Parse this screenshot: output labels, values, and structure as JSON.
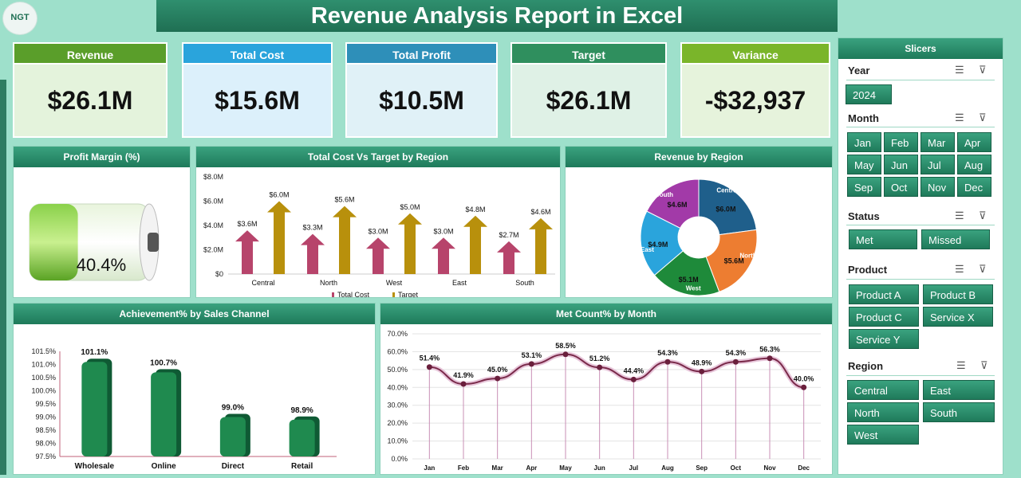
{
  "header": {
    "title": "Revenue Analysis Report in Excel",
    "logo_text": "NGT"
  },
  "kpis": [
    {
      "label": "Revenue",
      "value": "$26.1M",
      "head": "#5a9e2a",
      "body": "#e4f3dc"
    },
    {
      "label": "Total Cost",
      "value": "$15.6M",
      "head": "#2aa4dc",
      "body": "#dcf0fb"
    },
    {
      "label": "Total Profit",
      "value": "$10.5M",
      "head": "#2e8fb9",
      "body": "#e0f1f7"
    },
    {
      "label": "Target",
      "value": "$26.1M",
      "head": "#2f8f5e",
      "body": "#dff1e6"
    },
    {
      "label": "Variance",
      "value": "-$32,937",
      "head": "#7ab52a",
      "body": "#e6f3dc"
    }
  ],
  "profit_margin": {
    "title": "Profit Margin (%)",
    "value": "40.4%",
    "level": 0.404
  },
  "cost_target": {
    "title": "Total Cost Vs Target by Region",
    "chart_data": {
      "type": "bar",
      "categories": [
        "Central",
        "North",
        "West",
        "East",
        "South"
      ],
      "series": [
        {
          "name": "Total Cost",
          "values": [
            3.6,
            3.3,
            3.0,
            3.0,
            2.7
          ],
          "labels": [
            "$3.6M",
            "$3.3M",
            "$3.0M",
            "$3.0M",
            "$2.7M"
          ],
          "color": "#b7446b"
        },
        {
          "name": "Target",
          "values": [
            6.0,
            5.6,
            5.0,
            4.8,
            4.6
          ],
          "labels": [
            "$6.0M",
            "$5.6M",
            "$5.0M",
            "$4.8M",
            "$4.6M"
          ],
          "color": "#b8900c"
        }
      ],
      "yticks": [
        "$0",
        "$2.0M",
        "$4.0M",
        "$6.0M",
        "$8.0M"
      ],
      "ylim": [
        0,
        8
      ]
    }
  },
  "revenue_region": {
    "title": "Revenue by Region",
    "chart_data": {
      "type": "pie",
      "slices": [
        {
          "name": "Central",
          "value": 6.0,
          "label": "$6.0M",
          "color": "#1f5f8b"
        },
        {
          "name": "North",
          "value": 5.6,
          "label": "$5.6M",
          "color": "#ed7d31"
        },
        {
          "name": "West",
          "value": 5.1,
          "label": "$5.1M",
          "color": "#1e8a3a"
        },
        {
          "name": "East",
          "value": 4.9,
          "label": "$4.9M",
          "color": "#2aa4dc"
        },
        {
          "name": "South",
          "value": 4.6,
          "label": "$4.6M",
          "color": "#a23aa8"
        }
      ]
    }
  },
  "achievement": {
    "title": "Achievement% by Sales Channel",
    "chart_data": {
      "type": "bar",
      "categories": [
        "Wholesale",
        "Online",
        "Direct",
        "Retail"
      ],
      "values": [
        101.1,
        100.7,
        99.0,
        98.9
      ],
      "labels": [
        "101.1%",
        "100.7%",
        "99.0%",
        "98.9%"
      ],
      "yticks": [
        "97.5%",
        "98.0%",
        "98.5%",
        "99.0%",
        "99.5%",
        "100.0%",
        "100.5%",
        "101.0%",
        "101.5%"
      ],
      "ylim": [
        97.5,
        101.5
      ]
    }
  },
  "met_count": {
    "title": "Met Count% by Month",
    "chart_data": {
      "type": "line",
      "categories": [
        "Jan",
        "Feb",
        "Mar",
        "Apr",
        "May",
        "Jun",
        "Jul",
        "Aug",
        "Sep",
        "Oct",
        "Nov",
        "Dec"
      ],
      "values": [
        51.4,
        41.9,
        45.0,
        53.1,
        58.5,
        51.2,
        44.4,
        54.3,
        48.9,
        54.3,
        56.3,
        40.0
      ],
      "labels": [
        "51.4%",
        "41.9%",
        "45.0%",
        "53.1%",
        "58.5%",
        "51.2%",
        "44.4%",
        "54.3%",
        "48.9%",
        "54.3%",
        "56.3%",
        "40.0%"
      ],
      "yticks": [
        "0.0%",
        "10.0%",
        "20.0%",
        "30.0%",
        "40.0%",
        "50.0%",
        "60.0%",
        "70.0%"
      ],
      "ylim": [
        0,
        70
      ]
    }
  },
  "slicers": {
    "title": "Slicers",
    "year": {
      "title": "Year",
      "items": [
        "2024"
      ]
    },
    "month": {
      "title": "Month",
      "items": [
        "Jan",
        "Feb",
        "Mar",
        "Apr",
        "May",
        "Jun",
        "Jul",
        "Aug",
        "Sep",
        "Oct",
        "Nov",
        "Dec"
      ]
    },
    "status": {
      "title": "Status",
      "items": [
        "Met",
        "Missed"
      ]
    },
    "product": {
      "title": "Product",
      "items": [
        "Product A",
        "Product B",
        "Product C",
        "Service X",
        "Service Y"
      ]
    },
    "region": {
      "title": "Region",
      "items": [
        "Central",
        "East",
        "North",
        "South",
        "West"
      ]
    }
  }
}
